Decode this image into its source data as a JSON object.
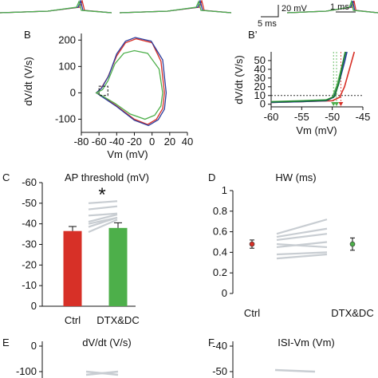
{
  "chart_data": [
    {
      "panel": "top",
      "type": "line",
      "traces": [
        {
          "color": "#d73027",
          "points": [
            [
              0,
              16
            ],
            [
              60,
              14
            ],
            [
              100,
              9
            ],
            [
              103,
              1
            ],
            [
              106,
              13
            ],
            [
              140,
              16
            ]
          ]
        },
        {
          "color": "#2c3e9e",
          "points": [
            [
              0,
              16
            ],
            [
              60,
              14
            ],
            [
              98,
              9
            ],
            [
              101,
              1
            ],
            [
              104,
              13
            ],
            [
              140,
              16
            ]
          ]
        },
        {
          "color": "#4daf4a",
          "points": [
            [
              0,
              16
            ],
            [
              60,
              14
            ],
            [
              96,
              9
            ],
            [
              99,
              2
            ],
            [
              102,
              13
            ],
            [
              140,
              16
            ]
          ]
        }
      ],
      "scalebar_a": {
        "v_label": "20 mV",
        "h_label": "5 ms"
      },
      "scalebar_b": {
        "h_label": "1 ms"
      }
    },
    {
      "panel": "B",
      "label": "B",
      "type": "line",
      "xlabel": "Vm (mV)",
      "ylabel": "dV/dt (V/s)",
      "xlim": [
        -80,
        40
      ],
      "ylim": [
        -150,
        225
      ],
      "xticks": [
        -80,
        -60,
        -40,
        -20,
        0,
        20,
        40
      ],
      "yticks": [
        -100,
        0,
        100,
        200
      ],
      "series": [
        {
          "color": "#d73027",
          "points": [
            [
              -63,
              0
            ],
            [
              -58,
              15
            ],
            [
              -50,
              60
            ],
            [
              -40,
              140
            ],
            [
              -30,
              190
            ],
            [
              -18,
              205
            ],
            [
              0,
              190
            ],
            [
              10,
              120
            ],
            [
              14,
              0
            ],
            [
              12,
              -60
            ],
            [
              5,
              -100
            ],
            [
              -5,
              -120
            ],
            [
              -20,
              -100
            ],
            [
              -40,
              -50
            ],
            [
              -55,
              -15
            ],
            [
              -63,
              0
            ]
          ]
        },
        {
          "color": "#2c3e9e",
          "points": [
            [
              -63,
              0
            ],
            [
              -57,
              18
            ],
            [
              -49,
              65
            ],
            [
              -40,
              148
            ],
            [
              -30,
              196
            ],
            [
              -19,
              210
            ],
            [
              -1,
              196
            ],
            [
              12,
              125
            ],
            [
              16,
              0
            ],
            [
              14,
              -62
            ],
            [
              7,
              -102
            ],
            [
              -4,
              -124
            ],
            [
              -20,
              -104
            ],
            [
              -40,
              -52
            ],
            [
              -56,
              -16
            ],
            [
              -63,
              0
            ]
          ]
        },
        {
          "color": "#4daf4a",
          "points": [
            [
              -63,
              0
            ],
            [
              -56,
              12
            ],
            [
              -50,
              45
            ],
            [
              -42,
              110
            ],
            [
              -32,
              150
            ],
            [
              -20,
              160
            ],
            [
              -5,
              150
            ],
            [
              8,
              90
            ],
            [
              12,
              0
            ],
            [
              10,
              -50
            ],
            [
              3,
              -85
            ],
            [
              -8,
              -100
            ],
            [
              -25,
              -80
            ],
            [
              -42,
              -40
            ],
            [
              -56,
              -12
            ],
            [
              -63,
              0
            ]
          ]
        }
      ],
      "inset_box": {
        "x": [
          -60,
          -50
        ],
        "y": [
          -10,
          25
        ]
      }
    },
    {
      "panel": "B2",
      "label": "B’",
      "type": "line",
      "xlabel": "Vm (mV)",
      "ylabel": "dV/dt (V/s)",
      "xlim": [
        -60,
        -45
      ],
      "ylim": [
        -3,
        60
      ],
      "xticks": [
        -60,
        -55,
        -50,
        -45
      ],
      "yticks": [
        0,
        10,
        20,
        30,
        40,
        50
      ],
      "threshold_y": 10,
      "thresholds_x": [
        -49.8,
        -49.3,
        -48.6
      ],
      "series": [
        {
          "color": "#d73027",
          "points": [
            [
              -60,
              2
            ],
            [
              -55,
              3
            ],
            [
              -50,
              4
            ],
            [
              -48.8,
              8
            ],
            [
              -48,
              20
            ],
            [
              -47,
              45
            ],
            [
              -46.4,
              60
            ]
          ]
        },
        {
          "color": "#2c3e9e",
          "points": [
            [
              -60,
              2
            ],
            [
              -55,
              3
            ],
            [
              -51,
              4
            ],
            [
              -49.8,
              8
            ],
            [
              -49,
              22
            ],
            [
              -48,
              48
            ],
            [
              -47.6,
              60
            ]
          ]
        },
        {
          "color": "#4daf4a",
          "points": [
            [
              -60,
              3
            ],
            [
              -55,
              4
            ],
            [
              -51,
              5
            ],
            [
              -50,
              8
            ],
            [
              -49.2,
              22
            ],
            [
              -48.2,
              50
            ],
            [
              -47.9,
              60
            ]
          ]
        },
        {
          "color": "#1b7837",
          "points": [
            [
              -60,
              2.5
            ],
            [
              -55,
              3.5
            ],
            [
              -51,
              4.5
            ],
            [
              -49.6,
              9
            ],
            [
              -48.9,
              25
            ],
            [
              -48.1,
              52
            ],
            [
              -47.8,
              60
            ]
          ]
        }
      ]
    },
    {
      "panel": "C",
      "label": "C",
      "type": "bar",
      "title": "AP threshold (mV)",
      "categories": [
        "Ctrl",
        "DTX&DC"
      ],
      "values": [
        -36.5,
        -38
      ],
      "errors": [
        2.2,
        2.5
      ],
      "colors": [
        "#d73027",
        "#4daf4a"
      ],
      "ylim": [
        -60,
        0
      ],
      "yticks": [
        -60,
        -50,
        -40,
        -30,
        -20,
        -10,
        0
      ],
      "significance": "*",
      "paired_lines": [
        [
          -50,
          -51
        ],
        [
          -47,
          -48.5
        ],
        [
          -44,
          -45
        ],
        [
          -41,
          -44.5
        ],
        [
          -40,
          -43
        ],
        [
          -38.5,
          -43
        ],
        [
          -36,
          -42
        ]
      ]
    },
    {
      "panel": "D",
      "label": "D",
      "type": "scatter",
      "title": "HW (ms)",
      "categories": [
        "Ctrl",
        "DTX&DC"
      ],
      "values": [
        0.48,
        0.48
      ],
      "errors": [
        0.04,
        0.06
      ],
      "colors": [
        "#d73027",
        "#4daf4a"
      ],
      "ylim": [
        0,
        1.0
      ],
      "yticks": [
        0.0,
        0.2,
        0.4,
        0.6,
        0.8,
        1.0
      ],
      "paired_lines": [
        [
          0.58,
          0.72
        ],
        [
          0.55,
          0.63
        ],
        [
          0.52,
          0.58
        ],
        [
          0.48,
          0.45
        ],
        [
          0.45,
          0.5
        ],
        [
          0.38,
          0.4
        ],
        [
          0.34,
          0.38
        ]
      ]
    },
    {
      "panel": "E",
      "label": "E",
      "type": "line",
      "title": "dV/dt (V/s)",
      "yticks": [
        0,
        -100
      ],
      "ylim": [
        -130,
        10
      ]
    },
    {
      "panel": "F",
      "label": "F",
      "type": "line",
      "title": "ISI-Vm (Vm)",
      "yticks": [
        -40,
        -50
      ],
      "ylim": [
        -55,
        -38
      ]
    }
  ]
}
